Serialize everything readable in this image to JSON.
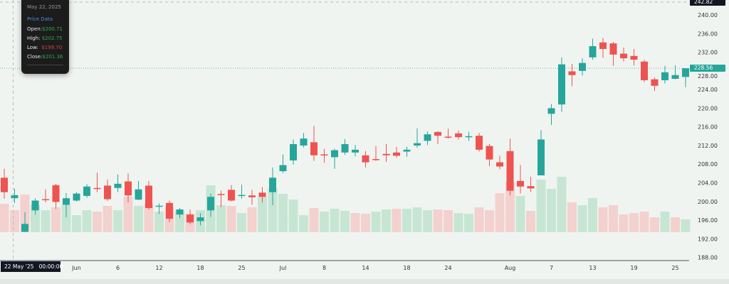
{
  "tooltip": {
    "date": "May 22, 2025",
    "header": "Price Data",
    "open_label": "Open:",
    "open": "$200.71",
    "high_label": "High:",
    "high": "$202.75",
    "low_label": "Low:",
    "low": "$199.70",
    "close_label": "Close:",
    "close": "$201.36"
  },
  "crosshair": {
    "time_label": "22 May '25   00:00:00",
    "price_label": "242.82"
  },
  "last_price_label": "228.56",
  "colors": {
    "up": "#26a69a",
    "down": "#ef5350",
    "volume_up": "#c6e6d3",
    "volume_down": "#f3d1cf",
    "background": "#f0f4f1"
  },
  "chart_data": {
    "type": "candlestick",
    "ylim": [
      188,
      242.82
    ],
    "y_ticks": [
      "188.00",
      "192.00",
      "196.00",
      "200.00",
      "204.00",
      "208.00",
      "212.00",
      "216.00",
      "220.00",
      "224.00",
      "228.00",
      "232.00",
      "236.00",
      "240.00"
    ],
    "x_ticks": [
      {
        "label": "Jun",
        "date": "2025-06-02"
      },
      {
        "label": "6",
        "date": "2025-06-06"
      },
      {
        "label": "12",
        "date": "2025-06-12"
      },
      {
        "label": "18",
        "date": "2025-06-18"
      },
      {
        "label": "25",
        "date": "2025-06-25"
      },
      {
        "label": "Jul",
        "date": "2025-07-01"
      },
      {
        "label": "8",
        "date": "2025-07-08"
      },
      {
        "label": "14",
        "date": "2025-07-14"
      },
      {
        "label": "18",
        "date": "2025-07-18"
      },
      {
        "label": "24",
        "date": "2025-07-24"
      },
      {
        "label": "Aug",
        "date": "2025-08-01"
      },
      {
        "label": "7",
        "date": "2025-08-07"
      },
      {
        "label": "13",
        "date": "2025-08-13"
      },
      {
        "label": "19",
        "date": "2025-08-19"
      },
      {
        "label": "25",
        "date": "2025-08-25"
      }
    ],
    "ohlc_fields": [
      "open",
      "high",
      "low",
      "close"
    ],
    "candles": [
      {
        "date": "2025-05-21",
        "ohlc": [
          205.1,
          207.0,
          200.6,
          202.0
        ],
        "volume": 40
      },
      {
        "date": "2025-05-22",
        "ohlc": [
          200.71,
          202.75,
          199.7,
          201.36
        ],
        "volume": 31
      },
      {
        "date": "2025-05-23",
        "ohlc": [
          193.5,
          197.7,
          193.4,
          195.2
        ],
        "volume": 53
      },
      {
        "date": "2025-05-27",
        "ohlc": [
          198.1,
          200.7,
          197.2,
          200.2
        ],
        "volume": 38
      },
      {
        "date": "2025-05-28",
        "ohlc": [
          200.5,
          202.6,
          199.8,
          200.3
        ],
        "volume": 31
      },
      {
        "date": "2025-05-29",
        "ohlc": [
          203.5,
          203.8,
          198.4,
          199.9
        ],
        "volume": 35
      },
      {
        "date": "2025-05-30",
        "ohlc": [
          199.3,
          201.8,
          196.6,
          200.7
        ],
        "volume": 39
      },
      {
        "date": "2025-06-02",
        "ohlc": [
          200.2,
          202.0,
          200.0,
          201.7
        ],
        "volume": 24
      },
      {
        "date": "2025-06-03",
        "ohlc": [
          201.2,
          203.7,
          200.8,
          203.2
        ],
        "volume": 31
      },
      {
        "date": "2025-06-04",
        "ohlc": [
          202.9,
          206.2,
          202.0,
          202.7
        ],
        "volume": 29
      },
      {
        "date": "2025-06-05",
        "ohlc": [
          203.4,
          204.7,
          200.1,
          200.5
        ],
        "volume": 37
      },
      {
        "date": "2025-06-06",
        "ohlc": [
          202.9,
          205.8,
          202.0,
          203.8
        ],
        "volume": 31
      },
      {
        "date": "2025-06-09",
        "ohlc": [
          204.3,
          206.0,
          199.8,
          201.3
        ],
        "volume": 50
      },
      {
        "date": "2025-06-10",
        "ohlc": [
          200.4,
          204.4,
          200.3,
          202.6
        ],
        "volume": 37
      },
      {
        "date": "2025-06-11",
        "ohlc": [
          203.4,
          204.4,
          198.3,
          198.6
        ],
        "volume": 40
      },
      {
        "date": "2025-06-12",
        "ohlc": [
          198.9,
          199.6,
          197.3,
          199.1
        ],
        "volume": 29
      },
      {
        "date": "2025-06-13",
        "ohlc": [
          199.7,
          200.2,
          195.6,
          196.3
        ],
        "volume": 35
      },
      {
        "date": "2025-06-16",
        "ohlc": [
          197.2,
          198.6,
          196.4,
          198.3
        ],
        "volume": 30
      },
      {
        "date": "2025-06-17",
        "ohlc": [
          197.2,
          198.3,
          195.1,
          195.5
        ],
        "volume": 26
      },
      {
        "date": "2025-06-18",
        "ohlc": [
          195.8,
          197.5,
          194.9,
          196.6
        ],
        "volume": 31
      },
      {
        "date": "2025-06-20",
        "ohlc": [
          198.1,
          201.7,
          196.7,
          201.0
        ],
        "volume": 66
      },
      {
        "date": "2025-06-23",
        "ohlc": [
          201.6,
          202.3,
          198.8,
          201.4
        ],
        "volume": 38
      },
      {
        "date": "2025-06-24",
        "ohlc": [
          202.5,
          203.5,
          200.0,
          200.2
        ],
        "volume": 37
      },
      {
        "date": "2025-06-25",
        "ohlc": [
          201.3,
          203.6,
          200.6,
          201.4
        ],
        "volume": 27
      },
      {
        "date": "2025-06-26",
        "ohlc": [
          201.3,
          202.5,
          199.3,
          200.9
        ],
        "volume": 35
      },
      {
        "date": "2025-06-27",
        "ohlc": [
          201.9,
          203.1,
          199.8,
          201.0
        ],
        "volume": 50
      },
      {
        "date": "2025-06-30",
        "ohlc": [
          202.0,
          207.3,
          199.2,
          205.1
        ],
        "volume": 62
      },
      {
        "date": "2025-07-01",
        "ohlc": [
          206.5,
          210.1,
          206.1,
          207.8
        ],
        "volume": 54
      },
      {
        "date": "2025-07-02",
        "ohlc": [
          208.8,
          213.3,
          207.9,
          212.3
        ],
        "volume": 46
      },
      {
        "date": "2025-07-03",
        "ohlc": [
          212.0,
          214.7,
          211.6,
          213.5
        ],
        "volume": 24
      },
      {
        "date": "2025-07-07",
        "ohlc": [
          212.7,
          216.2,
          208.7,
          209.9
        ],
        "volume": 34
      },
      {
        "date": "2025-07-08",
        "ohlc": [
          210.1,
          211.3,
          208.3,
          210.0
        ],
        "volume": 29
      },
      {
        "date": "2025-07-09",
        "ohlc": [
          209.5,
          211.3,
          207.0,
          211.0
        ],
        "volume": 33
      },
      {
        "date": "2025-07-10",
        "ohlc": [
          210.5,
          213.4,
          210.0,
          212.3
        ],
        "volume": 30
      },
      {
        "date": "2025-07-11",
        "ohlc": [
          210.5,
          212.1,
          209.7,
          211.1
        ],
        "volume": 27
      },
      {
        "date": "2025-07-14",
        "ohlc": [
          209.9,
          210.8,
          207.3,
          208.4
        ],
        "volume": 26
      },
      {
        "date": "2025-07-15",
        "ohlc": [
          209.1,
          211.9,
          208.7,
          209.0
        ],
        "volume": 29
      },
      {
        "date": "2025-07-16",
        "ohlc": [
          210.2,
          212.3,
          208.5,
          209.9
        ],
        "volume": 32
      },
      {
        "date": "2025-07-17",
        "ohlc": [
          210.5,
          211.7,
          209.4,
          209.8
        ],
        "volume": 33
      },
      {
        "date": "2025-07-18",
        "ohlc": [
          210.7,
          211.7,
          209.6,
          211.1
        ],
        "volume": 33
      },
      {
        "date": "2025-07-21",
        "ohlc": [
          212.0,
          215.7,
          211.5,
          212.5
        ],
        "volume": 35
      },
      {
        "date": "2025-07-22",
        "ohlc": [
          213.0,
          215.0,
          212.1,
          214.4
        ],
        "volume": 31
      },
      {
        "date": "2025-07-23",
        "ohlc": [
          214.9,
          215.1,
          212.3,
          214.1
        ],
        "volume": 32
      },
      {
        "date": "2025-07-24",
        "ohlc": [
          213.9,
          215.6,
          213.5,
          213.7
        ],
        "volume": 31
      },
      {
        "date": "2025-07-25",
        "ohlc": [
          214.6,
          215.2,
          213.3,
          213.8
        ],
        "volume": 27
      },
      {
        "date": "2025-07-28",
        "ohlc": [
          213.9,
          214.9,
          213.0,
          214.0
        ],
        "volume": 26
      },
      {
        "date": "2025-07-29",
        "ohlc": [
          214.1,
          214.7,
          210.7,
          211.1
        ],
        "volume": 35
      },
      {
        "date": "2025-07-30",
        "ohlc": [
          211.9,
          212.3,
          207.6,
          209.0
        ],
        "volume": 31
      },
      {
        "date": "2025-07-31",
        "ohlc": [
          208.4,
          209.8,
          206.9,
          207.5
        ],
        "volume": 55
      },
      {
        "date": "2025-08-01",
        "ohlc": [
          210.8,
          213.5,
          201.3,
          202.3
        ],
        "volume": 71
      },
      {
        "date": "2025-08-04",
        "ohlc": [
          204.4,
          207.8,
          201.7,
          203.2
        ],
        "volume": 51
      },
      {
        "date": "2025-08-05",
        "ohlc": [
          203.3,
          205.3,
          202.0,
          202.8
        ],
        "volume": 30
      },
      {
        "date": "2025-08-06",
        "ohlc": [
          205.6,
          215.3,
          205.6,
          213.3
        ],
        "volume": 74
      },
      {
        "date": "2025-08-07",
        "ohlc": [
          218.8,
          220.9,
          216.4,
          220.0
        ],
        "volume": 61
      },
      {
        "date": "2025-08-08",
        "ohlc": [
          220.8,
          230.9,
          219.2,
          229.4
        ],
        "volume": 78
      },
      {
        "date": "2025-08-11",
        "ohlc": [
          227.9,
          229.5,
          224.7,
          227.1
        ],
        "volume": 42
      },
      {
        "date": "2025-08-12",
        "ohlc": [
          228.0,
          230.7,
          227.0,
          229.7
        ],
        "volume": 38
      },
      {
        "date": "2025-08-13",
        "ohlc": [
          230.9,
          234.9,
          230.4,
          233.3
        ],
        "volume": 48
      },
      {
        "date": "2025-08-14",
        "ohlc": [
          234.1,
          235.1,
          230.8,
          232.7
        ],
        "volume": 35
      },
      {
        "date": "2025-08-15",
        "ohlc": [
          233.9,
          234.2,
          229.1,
          231.5
        ],
        "volume": 38
      },
      {
        "date": "2025-08-18",
        "ohlc": [
          231.7,
          233.0,
          230.0,
          230.7
        ],
        "volume": 25
      },
      {
        "date": "2025-08-19",
        "ohlc": [
          231.2,
          232.7,
          229.2,
          230.4
        ],
        "volume": 27
      },
      {
        "date": "2025-08-20",
        "ohlc": [
          230.0,
          230.4,
          225.6,
          226.0
        ],
        "volume": 29
      },
      {
        "date": "2025-08-21",
        "ohlc": [
          226.2,
          226.6,
          223.7,
          224.8
        ],
        "volume": 21
      },
      {
        "date": "2025-08-22",
        "ohlc": [
          226.0,
          229.1,
          225.3,
          227.7
        ],
        "volume": 29
      },
      {
        "date": "2025-08-25",
        "ohlc": [
          226.3,
          229.2,
          226.2,
          227.1
        ],
        "volume": 21
      },
      {
        "date": "2025-08-26",
        "ohlc": [
          226.7,
          228.6,
          224.5,
          228.56
        ],
        "volume": 18
      }
    ],
    "last_price": 228.56,
    "crosshair_price": 242.82,
    "crosshair_date": "2025-05-22"
  }
}
